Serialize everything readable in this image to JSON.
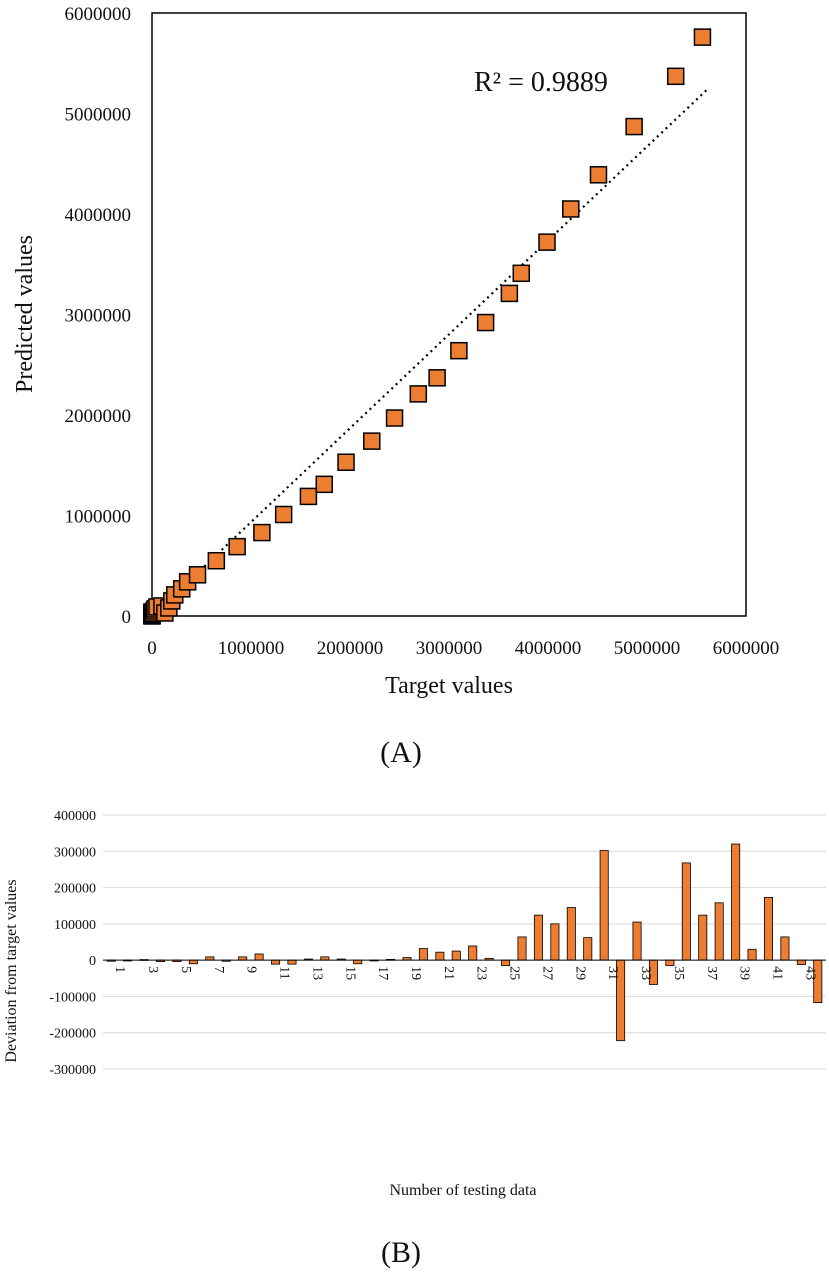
{
  "panel_a_label": "(A)",
  "panel_b_label": "(B)",
  "colors": {
    "marker": "#ED7D31",
    "marker_edge": "#000000",
    "bar": "#ED7D31",
    "bar_edge": "#000000",
    "grid": "#D9D9D9",
    "trend": "#000000"
  },
  "chart_data": [
    {
      "type": "scatter",
      "xlabel": "Target values",
      "ylabel": "Predicted values",
      "xlim": [
        0,
        6000000
      ],
      "ylim": [
        0,
        6000000
      ],
      "x_ticks": [
        "0",
        "1000000",
        "2000000",
        "3000000",
        "4000000",
        "5000000",
        "6000000"
      ],
      "y_ticks": [
        "0",
        "1000000",
        "2000000",
        "3000000",
        "4000000",
        "5000000",
        "6000000"
      ],
      "grid": false,
      "annotation": "R² = 0.9889",
      "trendline": {
        "style": "dotted",
        "x": [
          0,
          5620000
        ],
        "y": [
          0,
          5250000
        ]
      },
      "points": [
        [
          0,
          0
        ],
        [
          0,
          5000
        ],
        [
          0,
          10000
        ],
        [
          0,
          15000
        ],
        [
          0,
          20000
        ],
        [
          0,
          25000
        ],
        [
          0,
          30000
        ],
        [
          0,
          40000
        ],
        [
          10000,
          30000
        ],
        [
          20000,
          50000
        ],
        [
          30000,
          70000
        ],
        [
          50000,
          90000
        ],
        [
          100000,
          100000
        ],
        [
          130000,
          30000
        ],
        [
          170000,
          80000
        ],
        [
          200000,
          150000
        ],
        [
          230000,
          210000
        ],
        [
          300000,
          270000
        ],
        [
          360000,
          340000
        ],
        [
          460000,
          410000
        ],
        [
          650000,
          550000
        ],
        [
          860000,
          690000
        ],
        [
          1110000,
          830000
        ],
        [
          1330000,
          1010000
        ],
        [
          1580000,
          1190000
        ],
        [
          1740000,
          1310000
        ],
        [
          1960000,
          1530000
        ],
        [
          2220000,
          1740000
        ],
        [
          2450000,
          1970000
        ],
        [
          2690000,
          2210000
        ],
        [
          2880000,
          2370000
        ],
        [
          3100000,
          2640000
        ],
        [
          3370000,
          2920000
        ],
        [
          3610000,
          3210000
        ],
        [
          3730000,
          3410000
        ],
        [
          3990000,
          3720000
        ],
        [
          4230000,
          4050000
        ],
        [
          4510000,
          4390000
        ],
        [
          4870000,
          4870000
        ],
        [
          5290000,
          5370000
        ],
        [
          5560000,
          5760000
        ]
      ]
    },
    {
      "type": "bar",
      "xlabel": "Number of testing data",
      "ylabel": "Deviation from target values",
      "ylim": [
        -300000,
        400000
      ],
      "y_ticks": [
        "400000",
        "300000",
        "200000",
        "100000",
        "0",
        "-100000",
        "-200000",
        "-300000"
      ],
      "grid": true,
      "categories": [
        "1",
        "2",
        "3",
        "4",
        "5",
        "6",
        "7",
        "8",
        "9",
        "10",
        "11",
        "12",
        "13",
        "14",
        "15",
        "16",
        "17",
        "18",
        "19",
        "20",
        "21",
        "22",
        "23",
        "24",
        "25",
        "26",
        "27",
        "28",
        "29",
        "30",
        "31",
        "32",
        "33",
        "34",
        "35",
        "36",
        "37",
        "38",
        "39",
        "40",
        "41",
        "42",
        "43",
        "44"
      ],
      "category_labels_shown": [
        "1",
        "3",
        "5",
        "7",
        "9",
        "11",
        "13",
        "15",
        "17",
        "19",
        "21",
        "23",
        "25",
        "27",
        "29",
        "31",
        "33",
        "35",
        "37",
        "39",
        "41",
        "43"
      ],
      "values": [
        -3000,
        -2000,
        1500,
        -4000,
        -4000,
        -10000,
        9000,
        -3000,
        9000,
        17000,
        -11000,
        -11000,
        3000,
        9000,
        3000,
        -10000,
        -2000,
        2000,
        7000,
        32000,
        22000,
        25000,
        39000,
        5000,
        -15000,
        64000,
        124000,
        100000,
        145000,
        62000,
        302000,
        -222000,
        105000,
        -67000,
        -15000,
        268000,
        124000,
        158000,
        320000,
        30000,
        173000,
        64000,
        -12000,
        -117000
      ]
    }
  ]
}
